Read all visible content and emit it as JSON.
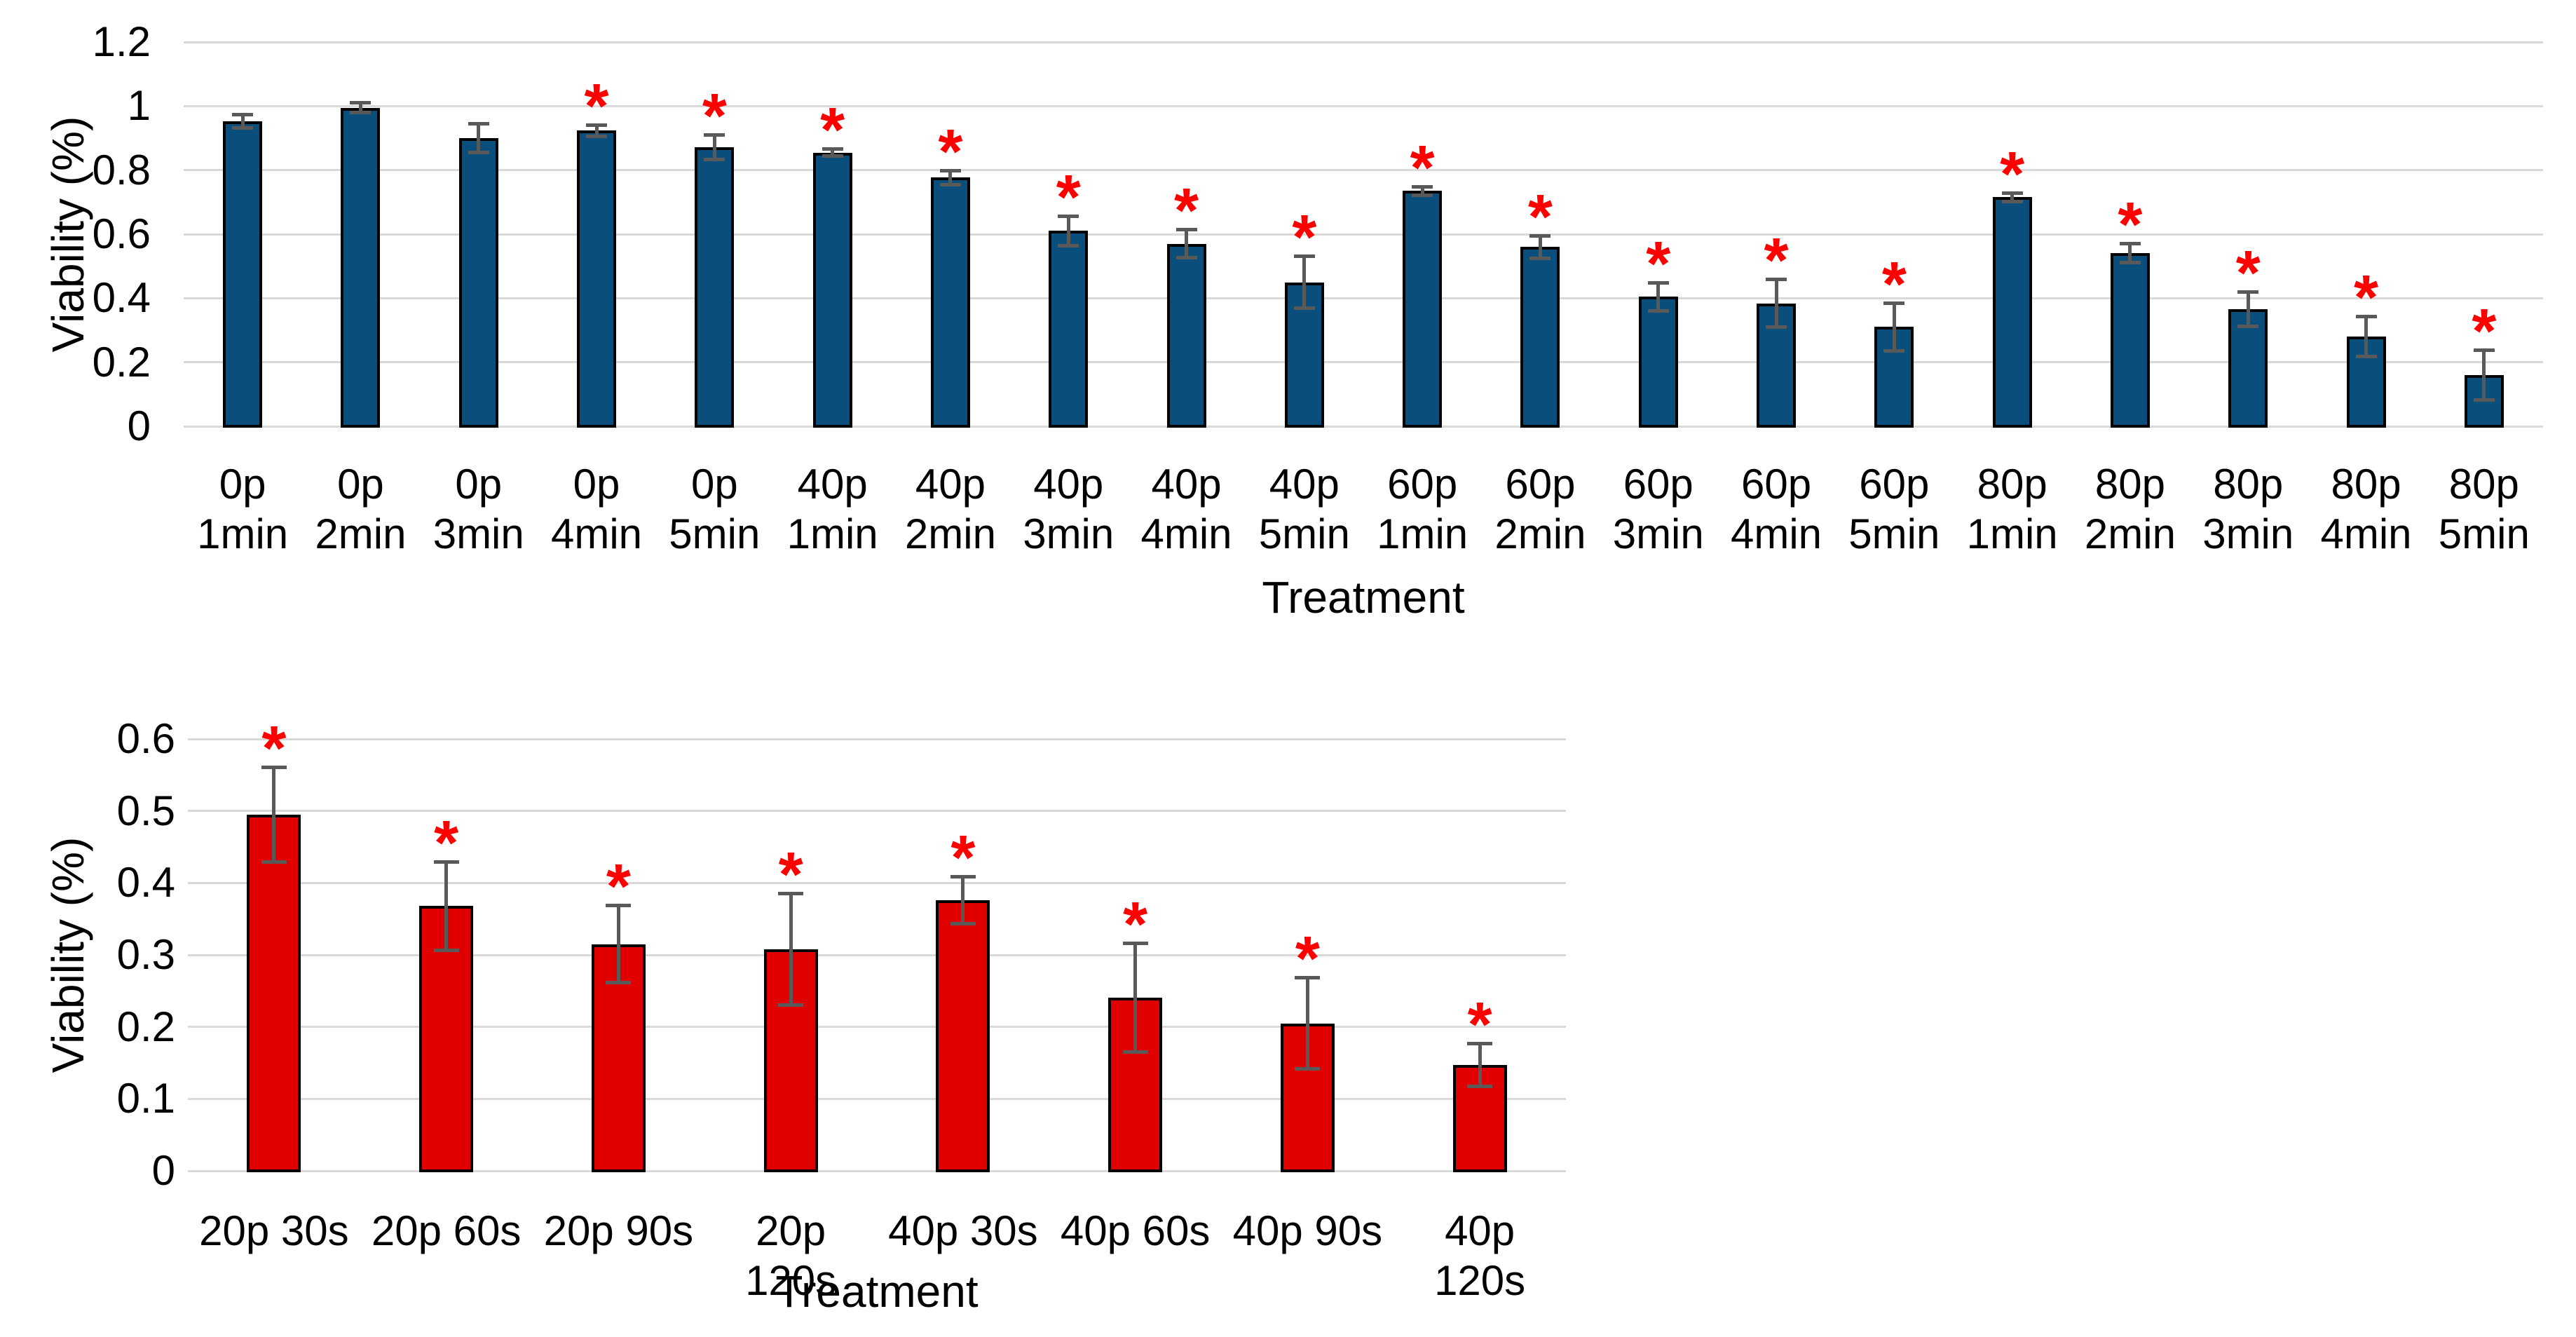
{
  "figure": {
    "background": "#ffffff",
    "gridline_color": "#d9d9d9",
    "text_color": "#000000"
  },
  "chart_data": [
    {
      "type": "bar",
      "title": "",
      "ylabel": "Viability (%)",
      "xlabel": "Treatment",
      "ylim": [
        0,
        1.2
      ],
      "ytick_step": 0.2,
      "ytick_labels": [
        "0",
        "0.2",
        "0.4",
        "0.6",
        "0.8",
        "1",
        "1.2"
      ],
      "grid": true,
      "legend": "none",
      "bar_color": "#0a4e7c",
      "bar_border_color": "#000000",
      "error_bar_color": "#595959",
      "significance_marker": "*",
      "significance_color": "#fe0000",
      "categories": [
        "0p 1min",
        "0p 2min",
        "0p 3min",
        "0p 4min",
        "0p 5min",
        "40p 1min",
        "40p 2min",
        "40p 3min",
        "40p 4min",
        "40p 5min",
        "60p 1min",
        "60p 2min",
        "60p 3min",
        "60p 4min",
        "60p 5min",
        "80p 1min",
        "80p 2min",
        "80p 3min",
        "80p 4min",
        "80p 5min"
      ],
      "series": [
        {
          "name": "Viability",
          "values": [
            0.953,
            0.995,
            0.9,
            0.923,
            0.872,
            0.855,
            0.777,
            0.61,
            0.57,
            0.45,
            0.735,
            0.56,
            0.405,
            0.384,
            0.31,
            0.715,
            0.541,
            0.365,
            0.28,
            0.16
          ],
          "errors": [
            0.022,
            0.017,
            0.045,
            0.018,
            0.04,
            0.012,
            0.023,
            0.047,
            0.045,
            0.082,
            0.015,
            0.036,
            0.045,
            0.075,
            0.076,
            0.014,
            0.03,
            0.055,
            0.063,
            0.078
          ],
          "significant": [
            false,
            false,
            false,
            true,
            true,
            true,
            true,
            true,
            true,
            true,
            true,
            true,
            true,
            true,
            true,
            true,
            true,
            true,
            true,
            true
          ]
        }
      ]
    },
    {
      "type": "bar",
      "title": "",
      "ylabel": "Viability (%)",
      "xlabel": "Treatment",
      "ylim": [
        0,
        0.6
      ],
      "ytick_step": 0.1,
      "ytick_labels": [
        "0",
        "0.1",
        "0.2",
        "0.3",
        "0.4",
        "0.5",
        "0.6"
      ],
      "grid": true,
      "legend": "none",
      "bar_color": "#e00000",
      "bar_border_color": "#000000",
      "error_bar_color": "#595959",
      "significance_marker": "*",
      "significance_color": "#fe0000",
      "categories": [
        "20p 30s",
        "20p 60s",
        "20p 90s",
        "20p 120s",
        "40p 30s",
        "40p 60s",
        "40p 90s",
        "40p 120s"
      ],
      "series": [
        {
          "name": "Viability",
          "values": [
            0.495,
            0.368,
            0.315,
            0.308,
            0.376,
            0.241,
            0.205,
            0.147
          ],
          "errors": [
            0.066,
            0.062,
            0.054,
            0.078,
            0.033,
            0.076,
            0.064,
            0.03
          ],
          "significant": [
            true,
            true,
            true,
            true,
            true,
            true,
            true,
            true
          ]
        }
      ]
    }
  ]
}
